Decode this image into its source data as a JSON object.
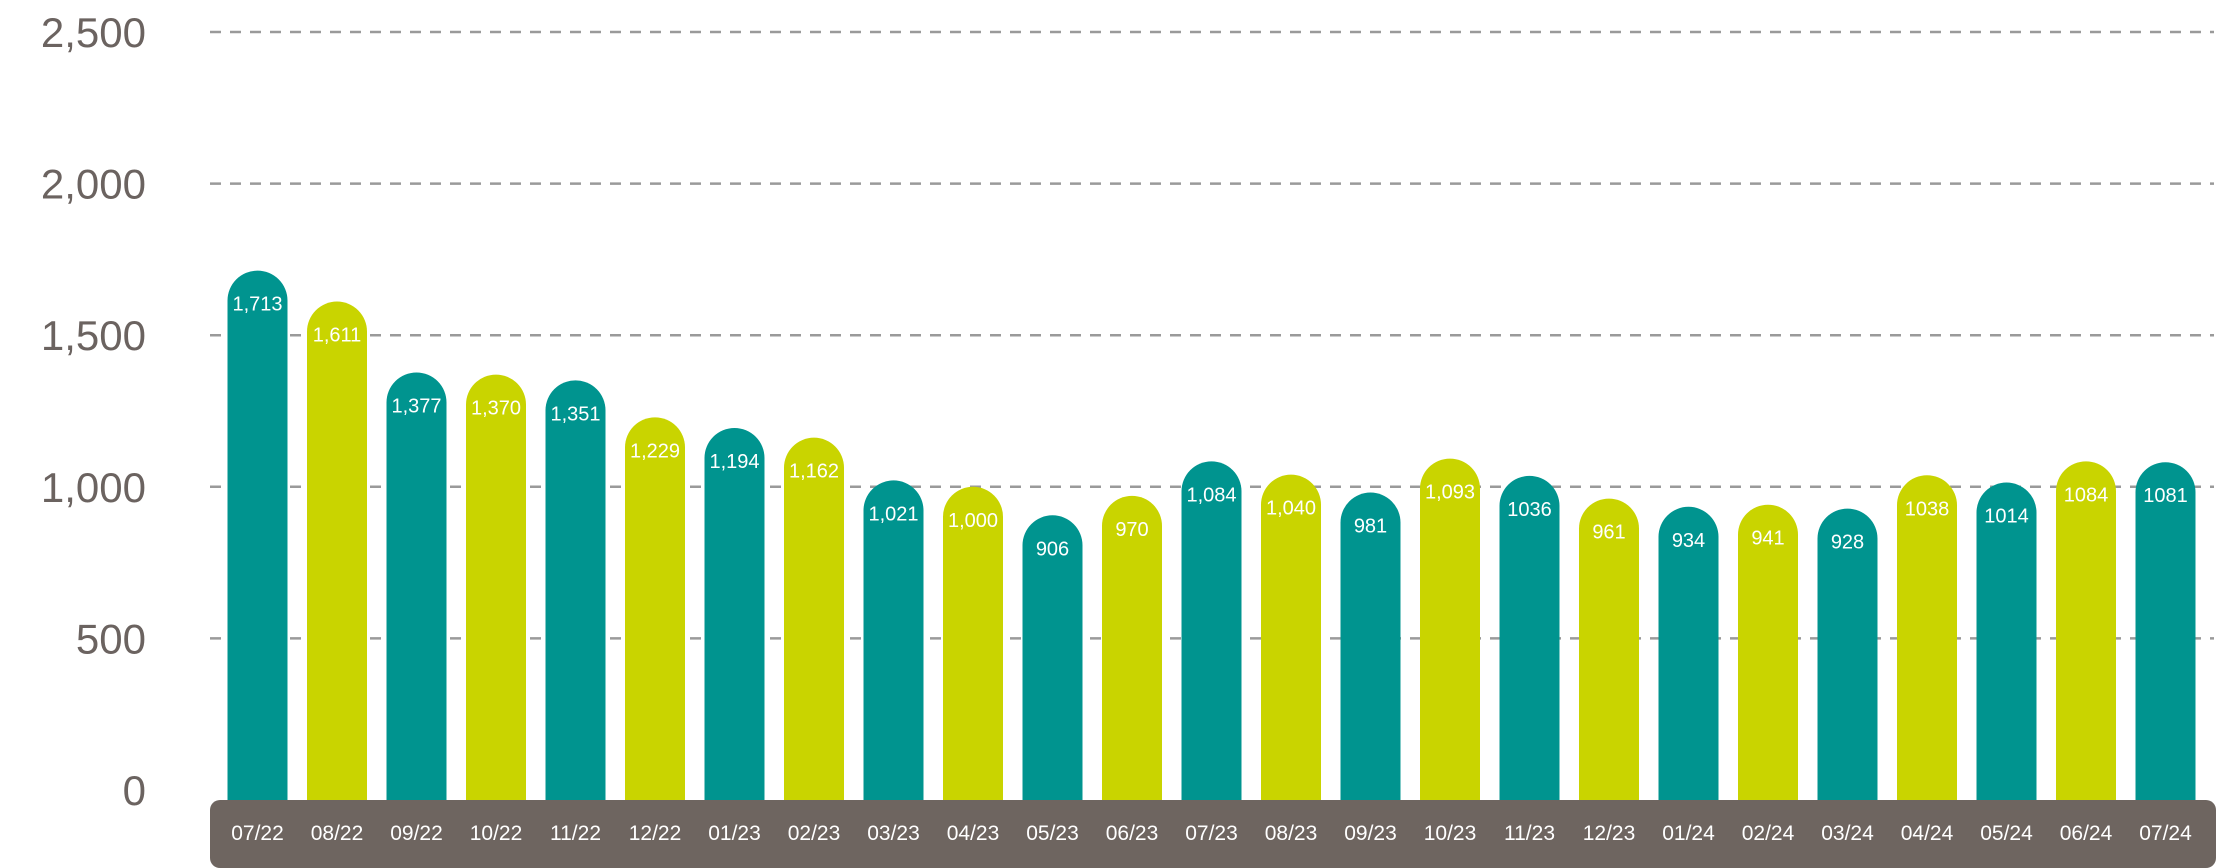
{
  "colors": {
    "teal": "#00948f",
    "lime": "#c9d400",
    "axis_band": "#6e6560",
    "grid": "#9a9a9a",
    "tick_text": "#6b6360",
    "bar_label": "#ffffff"
  },
  "chart_data": {
    "type": "bar",
    "title": "",
    "xlabel": "",
    "ylabel": "",
    "ylim": [
      0,
      2500
    ],
    "yticks": [
      0,
      500,
      1000,
      1500,
      2000,
      2500
    ],
    "ytick_labels": [
      "0",
      "500",
      "1,000",
      "1,500",
      "2,000",
      "2,500"
    ],
    "grid": true,
    "legend": "none",
    "categories": [
      "07/22",
      "08/22",
      "09/22",
      "10/22",
      "11/22",
      "12/22",
      "01/23",
      "02/23",
      "03/23",
      "04/23",
      "05/23",
      "06/23",
      "07/23",
      "08/23",
      "09/23",
      "10/23",
      "11/23",
      "12/23",
      "01/24",
      "02/24",
      "03/24",
      "04/24",
      "05/24",
      "06/24",
      "07/24"
    ],
    "values": [
      1713,
      1611,
      1377,
      1370,
      1351,
      1229,
      1194,
      1162,
      1021,
      1000,
      906,
      970,
      1084,
      1040,
      981,
      1093,
      1036,
      961,
      934,
      941,
      928,
      1038,
      1014,
      1084,
      1081
    ],
    "data_labels": [
      "1,713",
      "1,611",
      "1,377",
      "1,370",
      "1,351",
      "1,229",
      "1,194",
      "1,162",
      "1,021",
      "1,000",
      "906",
      "970",
      "1,084",
      "1,040",
      "981",
      "1,093",
      "1036",
      "961",
      "934",
      "941",
      "928",
      "1038",
      "1014",
      "1084",
      "1081"
    ],
    "bar_colors": [
      "teal",
      "lime",
      "teal",
      "lime",
      "teal",
      "lime",
      "teal",
      "lime",
      "teal",
      "lime",
      "teal",
      "lime",
      "teal",
      "lime",
      "teal",
      "lime",
      "teal",
      "lime",
      "teal",
      "lime",
      "teal",
      "lime",
      "teal",
      "lime",
      "teal"
    ]
  }
}
